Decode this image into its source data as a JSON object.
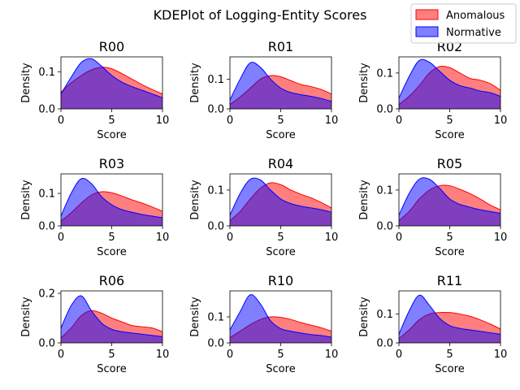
{
  "chart_data": {
    "type": "area",
    "title": "KDEPlot of Logging-Entity Scores",
    "legend": {
      "position": "top-right",
      "entries": [
        "Anomalous",
        "Normative"
      ]
    },
    "colors": {
      "anomalous_fill": "#ff0000",
      "normative_fill": "#0000ff",
      "anomalous_edge": "#ff0000",
      "normative_edge": "#0000ff"
    },
    "x": [
      0,
      1,
      2,
      3,
      4,
      5,
      6,
      7,
      8,
      9,
      10
    ],
    "xticks": [
      "0",
      "5",
      "10"
    ],
    "xlabel": "Score",
    "ylabel": "Density",
    "xlim": [
      0,
      10
    ],
    "panels": [
      {
        "title": "R00",
        "ylim": [
          0,
          0.14
        ],
        "yticks": [
          "0.0",
          "0.1"
        ],
        "ytick_values": [
          0,
          0.1
        ],
        "series": [
          {
            "name": "Anomalous",
            "values": [
              0.045,
              0.07,
              0.09,
              0.105,
              0.112,
              0.108,
              0.095,
              0.08,
              0.065,
              0.052,
              0.04
            ]
          },
          {
            "name": "Normative",
            "values": [
              0.04,
              0.085,
              0.125,
              0.135,
              0.115,
              0.09,
              0.072,
              0.06,
              0.05,
              0.04,
              0.03
            ]
          }
        ]
      },
      {
        "title": "R01",
        "ylim": [
          0,
          0.175
        ],
        "yticks": [
          "0.0",
          "0.1"
        ],
        "ytick_values": [
          0,
          0.1
        ],
        "series": [
          {
            "name": "Anomalous",
            "values": [
              0.015,
              0.04,
              0.07,
              0.1,
              0.112,
              0.108,
              0.095,
              0.082,
              0.075,
              0.065,
              0.05
            ]
          },
          {
            "name": "Normative",
            "values": [
              0.03,
              0.1,
              0.155,
              0.14,
              0.1,
              0.07,
              0.055,
              0.048,
              0.042,
              0.035,
              0.025
            ]
          }
        ]
      },
      {
        "title": "R02",
        "ylim": [
          0,
          0.145
        ],
        "yticks": [
          "0.0",
          "0.1"
        ],
        "ytick_values": [
          0,
          0.1
        ],
        "series": [
          {
            "name": "Anomalous",
            "values": [
              0.012,
              0.035,
              0.065,
              0.1,
              0.118,
              0.115,
              0.1,
              0.085,
              0.08,
              0.07,
              0.052
            ]
          },
          {
            "name": "Normative",
            "values": [
              0.03,
              0.09,
              0.135,
              0.13,
              0.105,
              0.08,
              0.065,
              0.058,
              0.05,
              0.045,
              0.035
            ]
          }
        ]
      },
      {
        "title": "R03",
        "ylim": [
          0,
          0.16
        ],
        "yticks": [
          "0.0",
          "0.1"
        ],
        "ytick_values": [
          0,
          0.1
        ],
        "series": [
          {
            "name": "Anomalous",
            "values": [
              0.015,
              0.04,
              0.07,
              0.095,
              0.105,
              0.102,
              0.092,
              0.08,
              0.07,
              0.058,
              0.045
            ]
          },
          {
            "name": "Normative",
            "values": [
              0.03,
              0.1,
              0.145,
              0.13,
              0.09,
              0.065,
              0.05,
              0.042,
              0.035,
              0.03,
              0.025
            ]
          }
        ]
      },
      {
        "title": "R04",
        "ylim": [
          0,
          0.145
        ],
        "yticks": [
          "0.0",
          "0.1"
        ],
        "ytick_values": [
          0,
          0.1
        ],
        "series": [
          {
            "name": "Anomalous",
            "values": [
              0.015,
              0.04,
              0.075,
              0.105,
              0.12,
              0.115,
              0.1,
              0.088,
              0.078,
              0.065,
              0.05
            ]
          },
          {
            "name": "Normative",
            "values": [
              0.03,
              0.09,
              0.13,
              0.128,
              0.1,
              0.075,
              0.062,
              0.055,
              0.05,
              0.045,
              0.038
            ]
          }
        ]
      },
      {
        "title": "R05",
        "ylim": [
          0,
          0.145
        ],
        "yticks": [
          "0.0",
          "0.1"
        ],
        "ytick_values": [
          0,
          0.1
        ],
        "series": [
          {
            "name": "Anomalous",
            "values": [
              0.015,
              0.04,
              0.075,
              0.1,
              0.112,
              0.112,
              0.102,
              0.09,
              0.075,
              0.058,
              0.045
            ]
          },
          {
            "name": "Normative",
            "values": [
              0.03,
              0.09,
              0.13,
              0.13,
              0.105,
              0.075,
              0.06,
              0.052,
              0.045,
              0.04,
              0.035
            ]
          }
        ]
      },
      {
        "title": "R06",
        "ylim": [
          0,
          0.21
        ],
        "yticks": [
          "0.0",
          "0.2"
        ],
        "ytick_values": [
          0,
          0.2
        ],
        "series": [
          {
            "name": "Anomalous",
            "values": [
              0.02,
              0.06,
              0.11,
              0.13,
              0.12,
              0.1,
              0.085,
              0.07,
              0.065,
              0.06,
              0.045
            ]
          },
          {
            "name": "Normative",
            "values": [
              0.06,
              0.15,
              0.19,
              0.13,
              0.08,
              0.055,
              0.045,
              0.04,
              0.035,
              0.03,
              0.025
            ]
          }
        ]
      },
      {
        "title": "R10",
        "ylim": [
          0,
          0.2
        ],
        "yticks": [
          "0.0",
          "0.1"
        ],
        "ytick_values": [
          0,
          0.1
        ],
        "series": [
          {
            "name": "Anomalous",
            "values": [
              0.02,
              0.045,
              0.07,
              0.09,
              0.1,
              0.098,
              0.09,
              0.078,
              0.068,
              0.058,
              0.045
            ]
          },
          {
            "name": "Normative",
            "values": [
              0.05,
              0.12,
              0.185,
              0.15,
              0.085,
              0.055,
              0.045,
              0.038,
              0.032,
              0.028,
              0.022
            ]
          }
        ]
      },
      {
        "title": "R11",
        "ylim": [
          0,
          0.18
        ],
        "yticks": [
          "0.0",
          "0.1"
        ],
        "ytick_values": [
          0,
          0.1
        ],
        "series": [
          {
            "name": "Anomalous",
            "values": [
              0.015,
              0.045,
              0.08,
              0.1,
              0.105,
              0.105,
              0.1,
              0.092,
              0.08,
              0.065,
              0.048
            ]
          },
          {
            "name": "Normative",
            "values": [
              0.03,
              0.11,
              0.165,
              0.13,
              0.085,
              0.06,
              0.05,
              0.045,
              0.04,
              0.035,
              0.03
            ]
          }
        ]
      }
    ]
  }
}
